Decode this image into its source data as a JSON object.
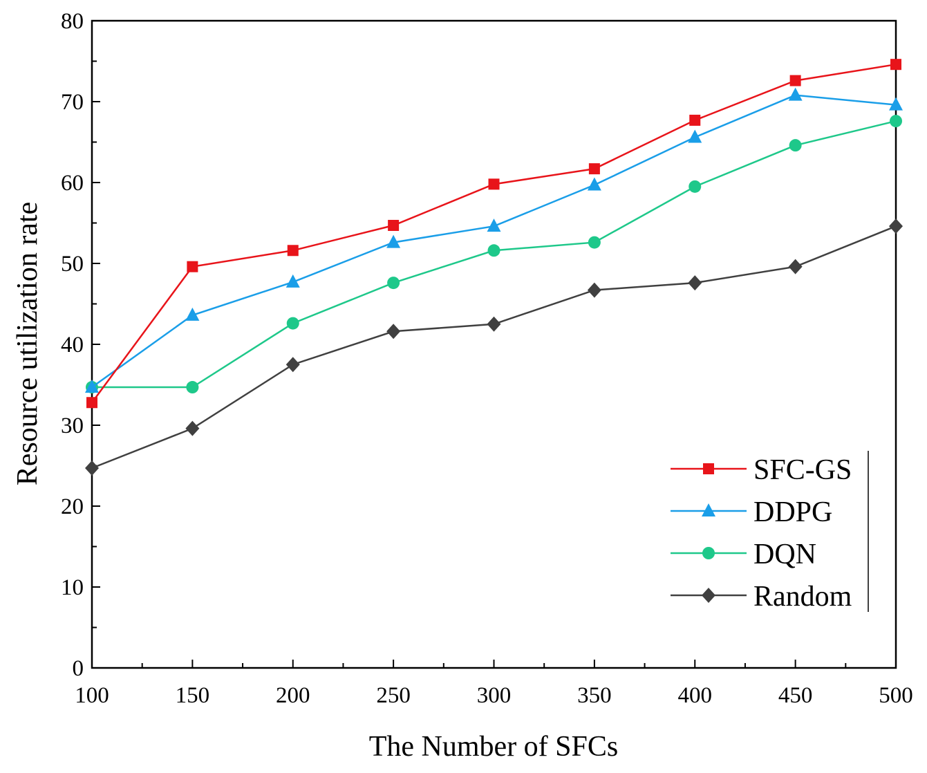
{
  "chart_data": {
    "type": "line",
    "title": "",
    "xlabel": "The Number of SFCs",
    "ylabel": "Resource utilization rate",
    "xlim": [
      100,
      500
    ],
    "ylim": [
      0,
      80
    ],
    "x": [
      100,
      150,
      200,
      250,
      300,
      350,
      400,
      450,
      500
    ],
    "x_ticks": [
      "100",
      "150",
      "200",
      "250",
      "300",
      "350",
      "400",
      "450",
      "500"
    ],
    "y_ticks": [
      "0",
      "10",
      "20",
      "30",
      "40",
      "50",
      "60",
      "70",
      "80"
    ],
    "legend_position": "bottom-right",
    "grid": false,
    "series": [
      {
        "name": "SFC-GS",
        "color": "#e8141a",
        "marker": "square",
        "values": [
          32.8,
          49.6,
          51.6,
          54.7,
          59.8,
          61.7,
          67.7,
          72.6,
          74.6
        ]
      },
      {
        "name": "DDPG",
        "color": "#1a9ee8",
        "marker": "triangle",
        "values": [
          34.7,
          43.6,
          47.7,
          52.6,
          54.6,
          59.7,
          65.6,
          70.8,
          69.6
        ]
      },
      {
        "name": "DQN",
        "color": "#1ec88a",
        "marker": "circle",
        "values": [
          34.7,
          34.7,
          42.6,
          47.6,
          51.6,
          52.6,
          59.5,
          64.6,
          67.6
        ]
      },
      {
        "name": "Random",
        "color": "#404040",
        "marker": "diamond",
        "values": [
          24.7,
          29.6,
          37.5,
          41.6,
          42.5,
          46.7,
          47.6,
          49.6,
          54.6
        ]
      }
    ]
  }
}
